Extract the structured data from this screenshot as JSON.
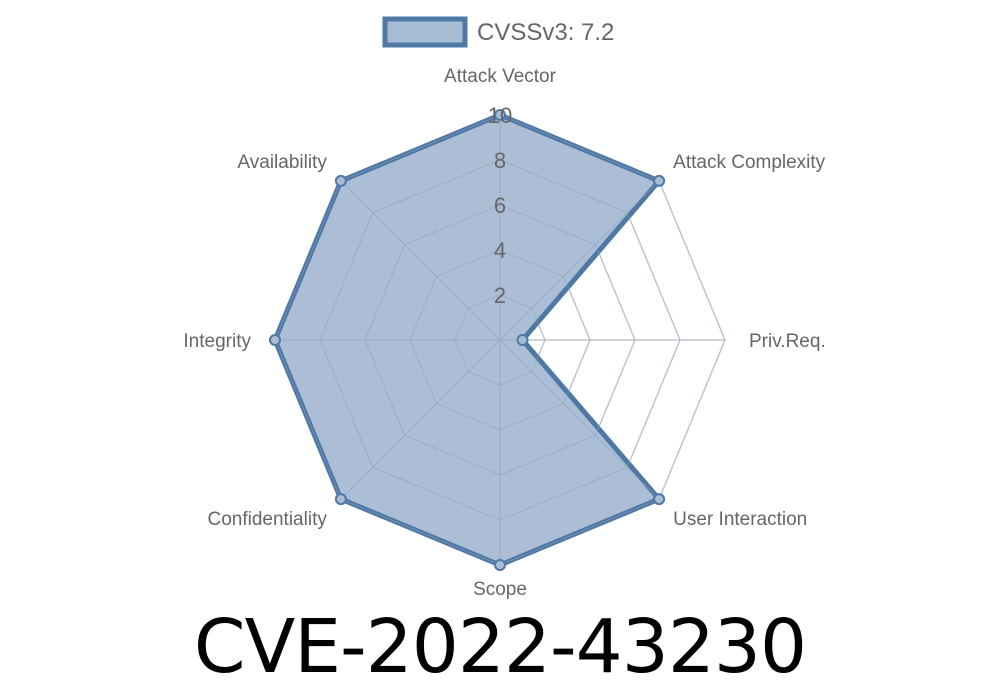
{
  "chart_data": {
    "type": "radar",
    "axes": [
      "Attack Vector",
      "Attack Complexity",
      "Priv.Req.",
      "User Interaction",
      "Scope",
      "Confidentiality",
      "Integrity",
      "Availability"
    ],
    "series": [
      {
        "name": "CVSSv3: 7.2",
        "values": [
          10,
          10,
          1,
          10,
          10,
          10,
          10,
          10
        ]
      }
    ],
    "rlim": [
      0,
      10
    ],
    "ticks": [
      "2",
      "4",
      "6",
      "8",
      "10"
    ],
    "legend": "top",
    "grid": true,
    "colors": {
      "line": "#4e78a6",
      "fill": "#a7bbd4",
      "grid": "#dddddd"
    }
  },
  "title": "CVE-2022-43230"
}
